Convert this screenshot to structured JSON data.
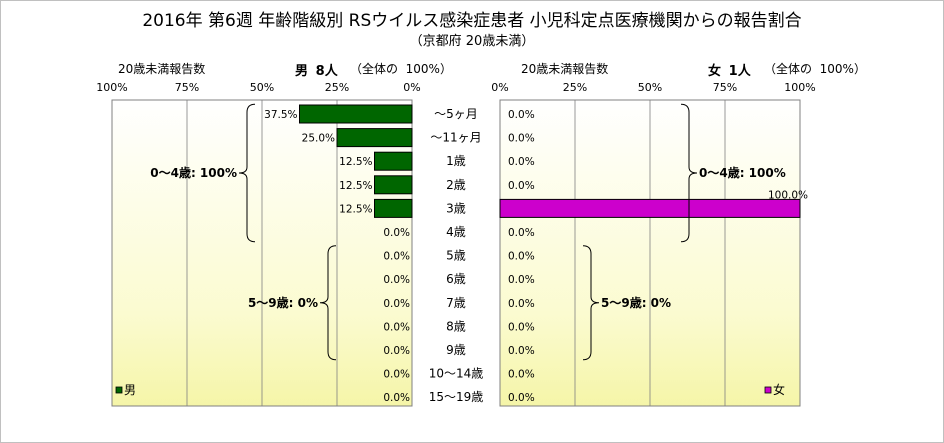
{
  "title": "2016年 第6週 年齢階級別 RSウイルス感染症患者 小児科定点医療機関からの報告割合",
  "subtitle": "（京都府 20歳未満）",
  "colors": {
    "male": "#006600",
    "female": "#cc00cc"
  },
  "chart_data": {
    "type": "bar",
    "orientation": "horizontal",
    "categories": [
      "～5ヶ月",
      "～11ヶ月",
      "1歳",
      "2歳",
      "3歳",
      "4歳",
      "5歳",
      "6歳",
      "7歳",
      "8歳",
      "9歳",
      "10～14歳",
      "15～19歳"
    ],
    "series": [
      {
        "name": "男",
        "values": [
          37.5,
          25.0,
          12.5,
          12.5,
          12.5,
          0.0,
          0.0,
          0.0,
          0.0,
          0.0,
          0.0,
          0.0,
          0.0
        ]
      },
      {
        "name": "女",
        "values": [
          0.0,
          0.0,
          0.0,
          0.0,
          100.0,
          0.0,
          0.0,
          0.0,
          0.0,
          0.0,
          0.0,
          0.0,
          0.0
        ]
      }
    ],
    "data_labels": {
      "male": [
        "37.5%",
        "25.0%",
        "12.5%",
        "12.5%",
        "12.5%",
        "0.0%",
        "0.0%",
        "0.0%",
        "0.0%",
        "0.0%",
        "0.0%",
        "0.0%",
        "0.0%"
      ],
      "female": [
        "0.0%",
        "0.0%",
        "0.0%",
        "0.0%",
        "100.0%",
        "0.0%",
        "0.0%",
        "0.0%",
        "0.0%",
        "0.0%",
        "0.0%",
        "0.0%",
        "0.0%"
      ]
    },
    "xlim": [
      0,
      100
    ],
    "left_ticks": [
      "100%",
      "75%",
      "50%",
      "25%",
      "0%"
    ],
    "right_ticks": [
      "0%",
      "25%",
      "50%",
      "75%",
      "100%"
    ],
    "tick_values_left": [
      100,
      75,
      50,
      25,
      0
    ],
    "tick_values_right": [
      0,
      25,
      50,
      75,
      100
    ],
    "left_header": {
      "label": "20歳未満報告数",
      "sex": "男",
      "count": "8人",
      "total_note": "（全体の",
      "total_pct": "100%）"
    },
    "right_header": {
      "label": "20歳未満報告数",
      "sex": "女",
      "count": "1人",
      "total_note": "（全体の",
      "total_pct": "100%）"
    },
    "groups": {
      "male": [
        {
          "label": "0～4歳: 100%",
          "from": 0,
          "to": 5
        },
        {
          "label": "5～9歳: 0%",
          "from": 6,
          "to": 10
        }
      ],
      "female": [
        {
          "label": "0～4歳: 100%",
          "from": 0,
          "to": 5
        },
        {
          "label": "5～9歳: 0%",
          "from": 6,
          "to": 10
        }
      ]
    },
    "legend": {
      "male": "男",
      "female": "女",
      "placement": "bottom"
    },
    "grid": true
  }
}
